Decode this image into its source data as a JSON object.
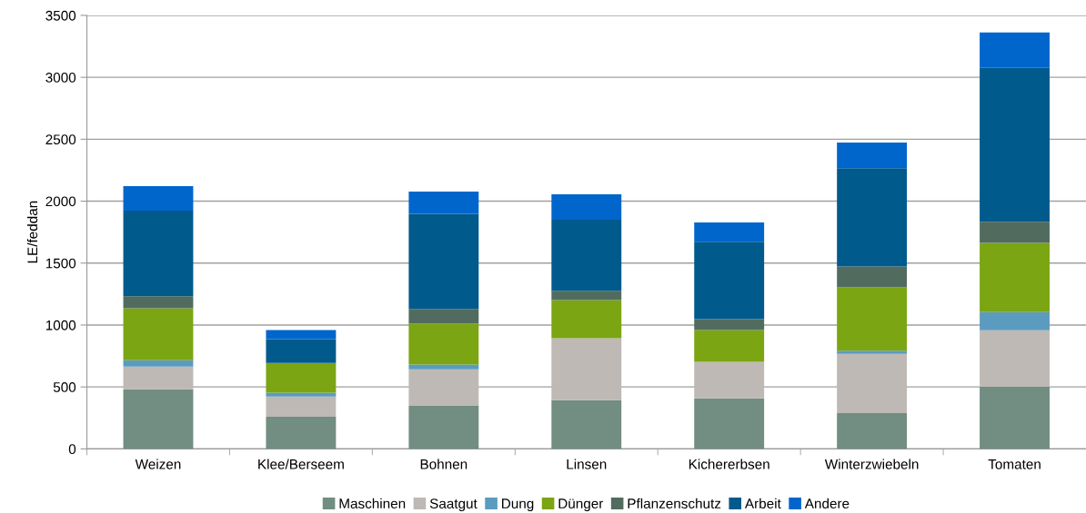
{
  "chart_data": {
    "type": "bar",
    "stacked": true,
    "ylabel": "LE/feddan",
    "categories": [
      "Weizen",
      "Klee/Berseem",
      "Bohnen",
      "Linsen",
      "Kichererbsen",
      "Winterzwiebeln",
      "Tomaten"
    ],
    "series": [
      {
        "name": "Maschinen",
        "color": "#728d82",
        "values": [
          481,
          260,
          348,
          393,
          407,
          289,
          502
        ]
      },
      {
        "name": "Saatgut",
        "color": "#beb9b5",
        "values": [
          184,
          162,
          295,
          500,
          295,
          478,
          456
        ]
      },
      {
        "name": "Dung",
        "color": "#5b9bbf",
        "values": [
          51,
          32,
          37,
          null,
          null,
          25,
          147
        ]
      },
      {
        "name": "Dünger",
        "color": "#7ba513",
        "values": [
          420,
          240,
          331,
          309,
          257,
          512,
          559
        ]
      },
      {
        "name": "Pflanzenschutz",
        "color": "#516c5f",
        "values": [
          96,
          null,
          118,
          74,
          89,
          169,
          169
        ]
      },
      {
        "name": "Arbeit",
        "color": "#005a8c",
        "values": [
          692,
          192,
          768,
          574,
          625,
          794,
          1243
        ]
      },
      {
        "name": "Andere",
        "color": "#0066cc",
        "values": [
          198,
          73,
          181,
          206,
          155,
          206,
          287
        ]
      }
    ],
    "ylim": [
      0,
      3500
    ],
    "yticks": [
      0,
      500,
      1000,
      1500,
      2000,
      2500,
      3000,
      3500
    ],
    "grid": "y",
    "legend": "bottom"
  }
}
